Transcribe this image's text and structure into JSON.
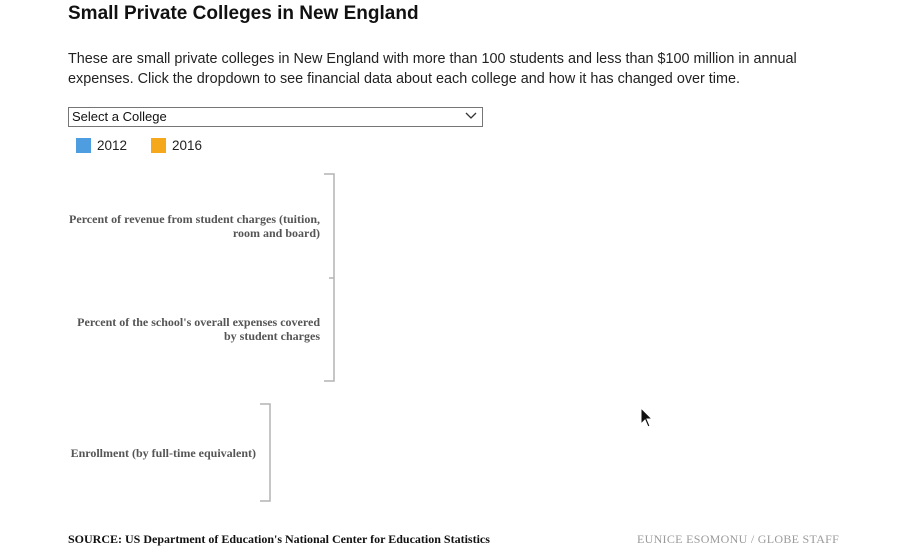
{
  "header": {
    "title": "Small Private Colleges in New England",
    "intro": "These are small private colleges in New England with more than 100 students and less than $100 million in annual expenses. Click the dropdown to see financial data about each college and how it has changed over time."
  },
  "dropdown": {
    "selected": "Select a College",
    "icon": "chevron-down-icon"
  },
  "legend": [
    {
      "label": "2012",
      "color": "#4e9de0"
    },
    {
      "label": "2016",
      "color": "#f6a81c"
    }
  ],
  "rows": {
    "revenue_label": "Percent of revenue from student charges (tuition, room and board)",
    "expenses_label": "Percent of the school's overall expenses covered by student charges",
    "enrollment_label": "Enrollment (by full-time equivalent)"
  },
  "footer": {
    "source": "SOURCE: US Department of Education's National Center for Education Statistics",
    "credit": "EUNICE ESOMONU / GLOBE STAFF"
  },
  "colors": {
    "bracket": "#b3b3b3"
  }
}
